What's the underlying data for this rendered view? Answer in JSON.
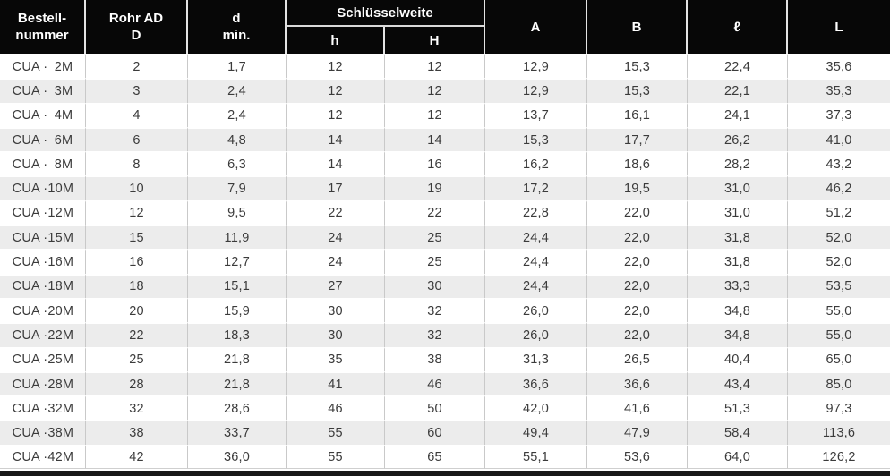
{
  "colors": {
    "header_bg": "#070707",
    "header_text": "#ffffff",
    "alt_row_bg": "#ececec",
    "body_text": "#3b3b3b",
    "grid_line": "#c9c9c9"
  },
  "table": {
    "header": {
      "bestellnummer": {
        "line1": "Bestell-",
        "line2": "nummer"
      },
      "rohr_ad": {
        "line1": "Rohr AD",
        "line2": "D"
      },
      "d_min": {
        "line1": "d",
        "line2": "min."
      },
      "schluesselweite": "Schlüsselweite",
      "sub_h": "h",
      "sub_H": "H",
      "a": "A",
      "b": "B",
      "l_script": "ℓ",
      "l_cap": "L"
    },
    "column_names": [
      "rohr-ad-d",
      "d-min",
      "sw-h",
      "sw-cap-h",
      "a",
      "b",
      "l-script",
      "l-cap"
    ],
    "rows": [
      {
        "order_prefix": "CUA ·",
        "order_size": "2M",
        "values": [
          "2",
          "1,7",
          "12",
          "12",
          "12,9",
          "15,3",
          "22,4",
          "35,6"
        ]
      },
      {
        "order_prefix": "CUA ·",
        "order_size": "3M",
        "values": [
          "3",
          "2,4",
          "12",
          "12",
          "12,9",
          "15,3",
          "22,1",
          "35,3"
        ]
      },
      {
        "order_prefix": "CUA ·",
        "order_size": "4M",
        "values": [
          "4",
          "2,4",
          "12",
          "12",
          "13,7",
          "16,1",
          "24,1",
          "37,3"
        ]
      },
      {
        "order_prefix": "CUA ·",
        "order_size": "6M",
        "values": [
          "6",
          "4,8",
          "14",
          "14",
          "15,3",
          "17,7",
          "26,2",
          "41,0"
        ]
      },
      {
        "order_prefix": "CUA ·",
        "order_size": "8M",
        "values": [
          "8",
          "6,3",
          "14",
          "16",
          "16,2",
          "18,6",
          "28,2",
          "43,2"
        ]
      },
      {
        "order_prefix": "CUA ·",
        "order_size": "10M",
        "values": [
          "10",
          "7,9",
          "17",
          "19",
          "17,2",
          "19,5",
          "31,0",
          "46,2"
        ]
      },
      {
        "order_prefix": "CUA ·",
        "order_size": "12M",
        "values": [
          "12",
          "9,5",
          "22",
          "22",
          "22,8",
          "22,0",
          "31,0",
          "51,2"
        ]
      },
      {
        "order_prefix": "CUA ·",
        "order_size": "15M",
        "values": [
          "15",
          "11,9",
          "24",
          "25",
          "24,4",
          "22,0",
          "31,8",
          "52,0"
        ]
      },
      {
        "order_prefix": "CUA ·",
        "order_size": "16M",
        "values": [
          "16",
          "12,7",
          "24",
          "25",
          "24,4",
          "22,0",
          "31,8",
          "52,0"
        ]
      },
      {
        "order_prefix": "CUA ·",
        "order_size": "18M",
        "values": [
          "18",
          "15,1",
          "27",
          "30",
          "24,4",
          "22,0",
          "33,3",
          "53,5"
        ]
      },
      {
        "order_prefix": "CUA ·",
        "order_size": "20M",
        "values": [
          "20",
          "15,9",
          "30",
          "32",
          "26,0",
          "22,0",
          "34,8",
          "55,0"
        ]
      },
      {
        "order_prefix": "CUA ·",
        "order_size": "22M",
        "values": [
          "22",
          "18,3",
          "30",
          "32",
          "26,0",
          "22,0",
          "34,8",
          "55,0"
        ]
      },
      {
        "order_prefix": "CUA ·",
        "order_size": "25M",
        "values": [
          "25",
          "21,8",
          "35",
          "38",
          "31,3",
          "26,5",
          "40,4",
          "65,0"
        ]
      },
      {
        "order_prefix": "CUA ·",
        "order_size": "28M",
        "values": [
          "28",
          "21,8",
          "41",
          "46",
          "36,6",
          "36,6",
          "43,4",
          "85,0"
        ]
      },
      {
        "order_prefix": "CUA ·",
        "order_size": "32M",
        "values": [
          "32",
          "28,6",
          "46",
          "50",
          "42,0",
          "41,6",
          "51,3",
          "97,3"
        ]
      },
      {
        "order_prefix": "CUA ·",
        "order_size": "38M",
        "values": [
          "38",
          "33,7",
          "55",
          "60",
          "49,4",
          "47,9",
          "58,4",
          "113,6"
        ]
      },
      {
        "order_prefix": "CUA ·",
        "order_size": "42M",
        "values": [
          "42",
          "36,0",
          "55",
          "65",
          "55,1",
          "53,6",
          "64,0",
          "126,2"
        ]
      }
    ]
  }
}
